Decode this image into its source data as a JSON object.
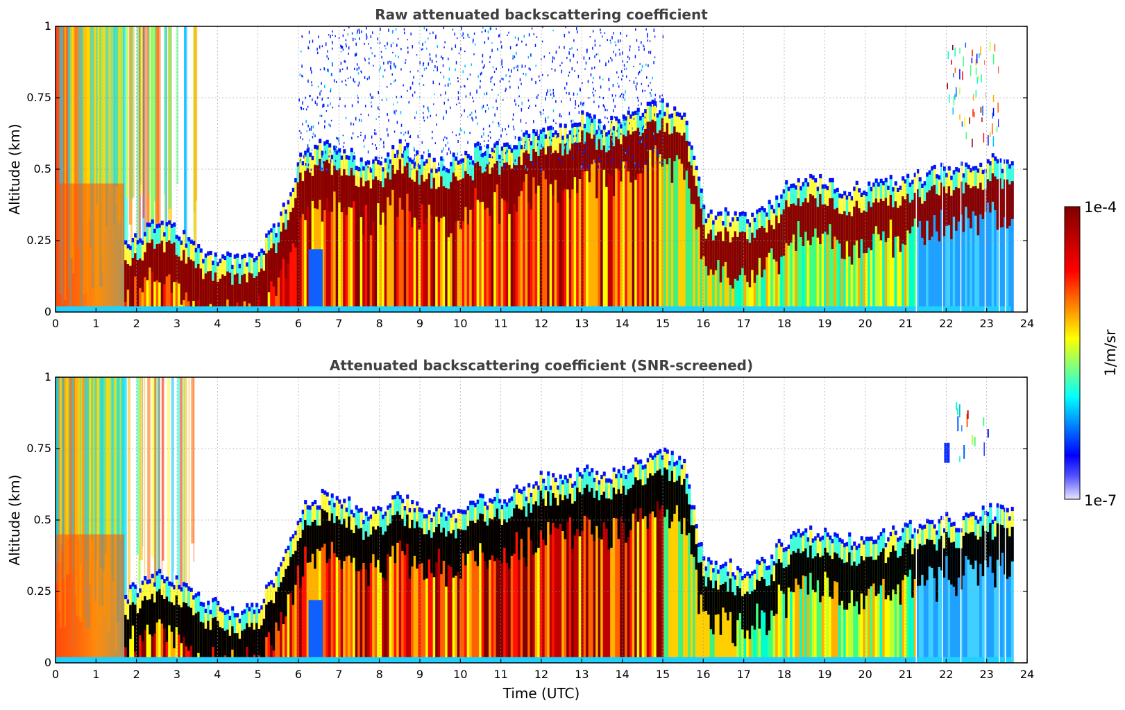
{
  "chart_data": [
    {
      "type": "heatmap",
      "title": "Raw attenuated backscattering coefficient",
      "xlabel": "",
      "ylabel": "Altitude (km)",
      "xlim": [
        0,
        24
      ],
      "ylim": [
        0,
        1
      ],
      "x_ticks": [
        "0",
        "1",
        "2",
        "3",
        "4",
        "5",
        "6",
        "7",
        "8",
        "9",
        "10",
        "11",
        "12",
        "13",
        "14",
        "15",
        "16",
        "17",
        "18",
        "19",
        "20",
        "21",
        "22",
        "23",
        "24"
      ],
      "y_ticks": [
        "0",
        "0.25",
        "0.5",
        "0.75",
        "1"
      ],
      "y_tick_values": [
        0,
        0.25,
        0.5,
        0.75,
        1
      ],
      "grid": true,
      "data_end_hour": 23.6,
      "layer_top_km": [
        0.35,
        0.34,
        0.2,
        0.2,
        0.24,
        0.28,
        0.25,
        0.19,
        0.17,
        0.15,
        0.18,
        0.28,
        0.5,
        0.55,
        0.55,
        0.5,
        0.5,
        0.55,
        0.5,
        0.5,
        0.5,
        0.55,
        0.55,
        0.57,
        0.62,
        0.6,
        0.65,
        0.62,
        0.65,
        0.68,
        0.7,
        0.66,
        0.32,
        0.31,
        0.3,
        0.32,
        0.4,
        0.44,
        0.42,
        0.4,
        0.41,
        0.42,
        0.44,
        0.45,
        0.47,
        0.47,
        0.5,
        0.5,
        0.56
      ],
      "snr_screened": false
    },
    {
      "type": "heatmap",
      "title": "Attenuated backscattering coefficient (SNR-screened)",
      "xlabel": "Time (UTC)",
      "ylabel": "Altitude (km)",
      "xlim": [
        0,
        24
      ],
      "ylim": [
        0,
        1
      ],
      "x_ticks": [
        "0",
        "1",
        "2",
        "3",
        "4",
        "5",
        "6",
        "7",
        "8",
        "9",
        "10",
        "11",
        "12",
        "13",
        "14",
        "15",
        "16",
        "17",
        "18",
        "19",
        "20",
        "21",
        "22",
        "23",
        "24"
      ],
      "y_ticks": [
        "0",
        "0.25",
        "0.5",
        "0.75",
        "1"
      ],
      "y_tick_values": [
        0,
        0.25,
        0.5,
        0.75,
        1
      ],
      "grid": true,
      "data_end_hour": 23.6,
      "layer_top_km": [
        0.35,
        0.34,
        0.2,
        0.2,
        0.24,
        0.28,
        0.25,
        0.19,
        0.17,
        0.15,
        0.18,
        0.28,
        0.5,
        0.55,
        0.55,
        0.5,
        0.5,
        0.55,
        0.5,
        0.5,
        0.5,
        0.55,
        0.55,
        0.57,
        0.62,
        0.6,
        0.65,
        0.62,
        0.65,
        0.68,
        0.7,
        0.66,
        0.32,
        0.31,
        0.3,
        0.32,
        0.4,
        0.44,
        0.42,
        0.4,
        0.41,
        0.42,
        0.44,
        0.45,
        0.47,
        0.47,
        0.5,
        0.5,
        0.56
      ],
      "snr_screened": true
    }
  ],
  "colorbar": {
    "label": "1/m/sr",
    "max_label": "1e-4",
    "min_label": "1e-7",
    "colors": [
      "#e6e6ff",
      "#0000ff",
      "#00ffff",
      "#ffff00",
      "#ff0000",
      "#800000"
    ]
  }
}
